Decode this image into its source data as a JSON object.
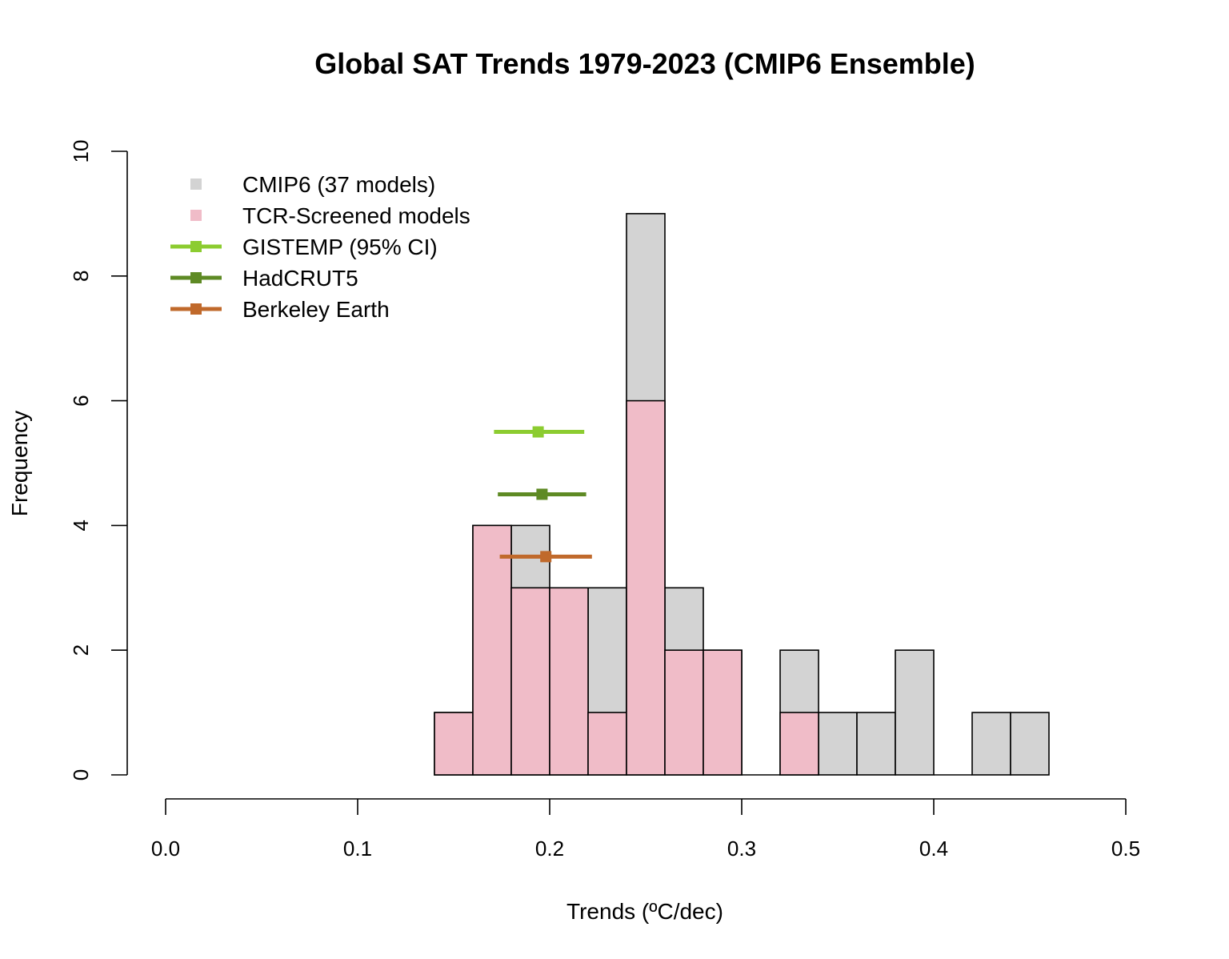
{
  "chart_data": {
    "type": "bar",
    "title": "Global SAT Trends 1979-2023 (CMIP6 Ensemble)",
    "xlabel": "Trends (ºC/dec)",
    "ylabel": "Frequency",
    "xlim": [
      0.0,
      0.5
    ],
    "ylim": [
      0,
      10
    ],
    "x_ticks": [
      "0.0",
      "0.1",
      "0.2",
      "0.3",
      "0.4",
      "0.5"
    ],
    "y_ticks": [
      "0",
      "2",
      "4",
      "6",
      "8",
      "10"
    ],
    "bin_edges": [
      0.14,
      0.16,
      0.18,
      0.2,
      0.22,
      0.24,
      0.26,
      0.28,
      0.3,
      0.32,
      0.34,
      0.36,
      0.38,
      0.4,
      0.42,
      0.44,
      0.46
    ],
    "series": [
      {
        "name": "CMIP6 (37 models)",
        "color": "#d3d3d3",
        "values": [
          1,
          4,
          4,
          3,
          3,
          9,
          3,
          2,
          0,
          2,
          1,
          1,
          2,
          0,
          1,
          1
        ]
      },
      {
        "name": "TCR-Screened models",
        "color": "#f0bcc8",
        "values": [
          1,
          4,
          3,
          3,
          1,
          6,
          2,
          2,
          0,
          1,
          0,
          0,
          0,
          0,
          0,
          0
        ]
      }
    ],
    "observations": [
      {
        "name": "GISTEMP (95% CI)",
        "color": "#8ccc30",
        "trend": 0.194,
        "low": 0.171,
        "high": 0.218,
        "y": 5.5
      },
      {
        "name": "HadCRUT5",
        "color": "#5e8a24",
        "trend": 0.196,
        "low": 0.173,
        "high": 0.219,
        "y": 4.5
      },
      {
        "name": "Berkeley Earth",
        "color": "#c0692b",
        "trend": 0.198,
        "low": 0.174,
        "high": 0.222,
        "y": 3.5
      }
    ],
    "legend_position": "top-left"
  }
}
